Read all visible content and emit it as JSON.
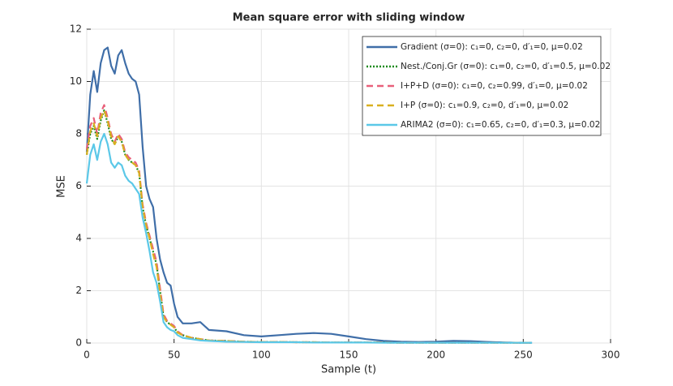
{
  "chart_data": {
    "type": "line",
    "title": "Mean square error with sliding window",
    "xlabel": "Sample (t)",
    "ylabel": "MSE",
    "x": [
      0,
      2,
      4,
      6,
      8,
      10,
      12,
      14,
      16,
      18,
      20,
      22,
      24,
      26,
      28,
      30,
      32,
      34,
      36,
      38,
      40,
      42,
      44,
      46,
      48,
      50,
      52,
      55,
      60,
      65,
      70,
      80,
      90,
      100,
      110,
      120,
      130,
      140,
      150,
      160,
      170,
      180,
      190,
      200,
      210,
      220,
      230,
      240,
      250,
      255
    ],
    "series": [
      {
        "name": "Gradient (σ=0): c₁=0, c₂=0, d′₁=0, μ=0.02",
        "color": "#3f6ea8",
        "linestyle": "solid",
        "values": [
          7.3,
          9.5,
          10.4,
          9.6,
          10.7,
          11.2,
          11.3,
          10.6,
          10.3,
          11.0,
          11.2,
          10.7,
          10.3,
          10.1,
          10.0,
          9.5,
          7.5,
          6.0,
          5.5,
          5.2,
          4.0,
          3.2,
          2.7,
          2.3,
          2.2,
          1.5,
          1.0,
          0.75,
          0.75,
          0.8,
          0.5,
          0.45,
          0.3,
          0.25,
          0.3,
          0.35,
          0.38,
          0.35,
          0.25,
          0.15,
          0.08,
          0.05,
          0.04,
          0.05,
          0.08,
          0.07,
          0.04,
          0.02,
          0.01,
          0.01
        ]
      },
      {
        "name": "Nest./Conj.Gr (σ=0): c₁=0, c₂=0, d′₁=0.5, μ=0.02",
        "color": "#1a8a1a",
        "linestyle": "dotted",
        "values": [
          7.2,
          8.0,
          8.3,
          7.8,
          8.5,
          8.9,
          8.4,
          7.8,
          7.6,
          7.9,
          7.7,
          7.2,
          7.0,
          6.9,
          6.8,
          6.5,
          5.2,
          4.5,
          4.0,
          3.5,
          3.0,
          2.0,
          1.0,
          0.8,
          0.7,
          0.6,
          0.4,
          0.3,
          0.2,
          0.15,
          0.1,
          0.08,
          0.05,
          0.04,
          0.04,
          0.03,
          0.03,
          0.02,
          0.02,
          0.02,
          0.02,
          0.01,
          0.01,
          0.01,
          0.01,
          0.01,
          0.01,
          0.01,
          0.01,
          0.01
        ]
      },
      {
        "name": "I+P+D (σ=0): c₁=0, c₂=0.99, d′₁=0, μ=0.02",
        "color": "#e8607a",
        "linestyle": "dashed",
        "values": [
          7.4,
          8.3,
          8.6,
          8.0,
          8.8,
          9.1,
          8.6,
          8.0,
          7.7,
          8.0,
          7.8,
          7.3,
          7.1,
          7.0,
          6.9,
          6.6,
          5.3,
          4.6,
          4.1,
          3.6,
          3.1,
          2.1,
          1.1,
          0.85,
          0.75,
          0.65,
          0.45,
          0.3,
          0.2,
          0.15,
          0.1,
          0.08,
          0.05,
          0.04,
          0.04,
          0.03,
          0.03,
          0.02,
          0.02,
          0.02,
          0.02,
          0.01,
          0.01,
          0.01,
          0.01,
          0.01,
          0.01,
          0.01,
          0.01,
          0.01
        ]
      },
      {
        "name": "I+P (σ=0): c₁=0.9, c₂=0, d′₁=0, μ=0.02",
        "color": "#d9b020",
        "linestyle": "dashed",
        "values": [
          7.2,
          8.1,
          8.4,
          7.9,
          8.6,
          8.9,
          8.5,
          7.9,
          7.6,
          7.9,
          7.7,
          7.2,
          7.0,
          6.9,
          6.8,
          6.5,
          5.2,
          4.5,
          4.0,
          3.4,
          2.9,
          1.9,
          1.0,
          0.8,
          0.7,
          0.6,
          0.4,
          0.3,
          0.2,
          0.15,
          0.1,
          0.08,
          0.05,
          0.04,
          0.04,
          0.03,
          0.03,
          0.02,
          0.02,
          0.02,
          0.02,
          0.01,
          0.01,
          0.01,
          0.01,
          0.01,
          0.01,
          0.01,
          0.01,
          0.01
        ]
      },
      {
        "name": "ARIMA2 (σ=0): c₁=0.65, c₂=0, d′₁=0.3, μ=0.02",
        "color": "#5bc8e8",
        "linestyle": "solid",
        "values": [
          6.1,
          7.2,
          7.6,
          7.0,
          7.7,
          8.0,
          7.6,
          6.9,
          6.7,
          6.9,
          6.8,
          6.4,
          6.2,
          6.1,
          5.9,
          5.7,
          4.8,
          4.2,
          3.5,
          2.7,
          2.3,
          1.6,
          0.8,
          0.6,
          0.5,
          0.45,
          0.3,
          0.2,
          0.15,
          0.1,
          0.08,
          0.05,
          0.04,
          0.03,
          0.03,
          0.03,
          0.02,
          0.02,
          0.02,
          0.02,
          0.01,
          0.01,
          0.01,
          0.01,
          0.01,
          0.01,
          0.01,
          0.01,
          0.01,
          0.01
        ]
      }
    ],
    "xlim": [
      0,
      300
    ],
    "xticks": [
      0,
      50,
      100,
      150,
      200,
      250,
      300
    ],
    "ylim": [
      0,
      12
    ],
    "yticks": [
      0,
      2,
      4,
      6,
      8,
      10,
      12
    ],
    "grid": true,
    "legend": "northeast"
  }
}
